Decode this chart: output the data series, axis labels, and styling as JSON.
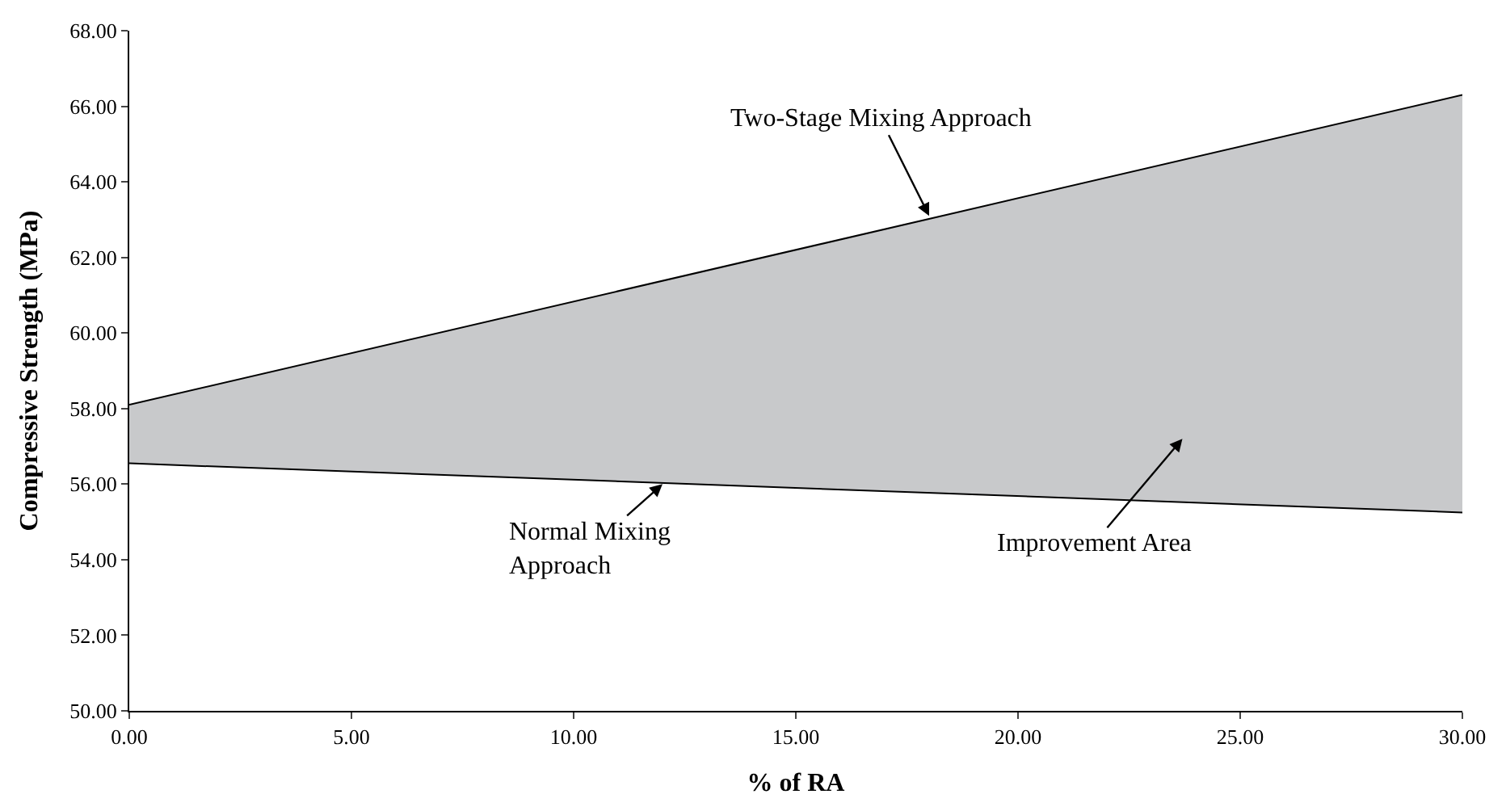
{
  "chart_data": {
    "type": "area",
    "xlabel": "% of RA",
    "ylabel": "Compressive Strength (MPa)",
    "x": [
      0,
      30
    ],
    "series": [
      {
        "type": "line",
        "color": "#000000",
        "values": [
          56.55,
          55.25
        ]
      },
      {
        "color": "#c8c9cb",
        "values": [
          58.1,
          66.3
        ]
      }
    ],
    "annotations": [
      {
        "text": "Two-Stage Mixing Approach",
        "x": 18,
        "y": 63.1
      },
      {
        "text": "Normal Mixing\nApproach",
        "x": 12,
        "y": 56.0
      },
      "Improvement Area"
    ],
    "xlim": [
      0,
      30
    ],
    "xticks": [
      {
        "value": 0,
        "label": "0.00"
      },
      {
        "value": 5,
        "label": "5.00"
      },
      {
        "value": 10,
        "label": "10.00"
      },
      {
        "value": 15,
        "label": "15.00"
      },
      {
        "value": 20,
        "label": "20.00"
      },
      {
        "value": 25,
        "label": "25.00"
      },
      {
        "value": 30,
        "label": "30.00"
      }
    ],
    "ylim": [
      50,
      68
    ],
    "yticks": [
      {
        "value": 50,
        "label": "50.00"
      },
      {
        "value": 52,
        "label": "52.00"
      },
      {
        "value": 54,
        "label": "54.00"
      },
      {
        "value": 56,
        "label": "56.00"
      },
      {
        "value": 58,
        "label": "58.00"
      },
      {
        "value": 60,
        "label": "60.00"
      },
      {
        "value": 62,
        "label": "62.00"
      },
      {
        "value": 64,
        "label": "64.00"
      },
      {
        "value": 66,
        "label": "66.00"
      },
      {
        "value": 68,
        "label": "68.00"
      }
    ],
    "marker": "none"
  }
}
